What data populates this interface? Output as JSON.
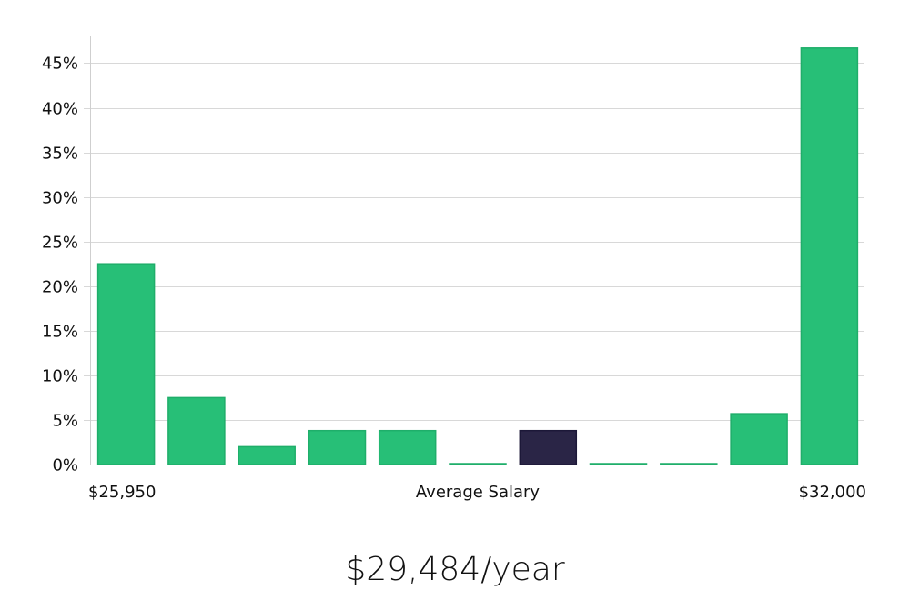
{
  "chart_data": {
    "type": "bar",
    "title": "",
    "xlabel": "Average Salary",
    "ylabel": "",
    "x_range_labels": {
      "min": "$25,950",
      "max": "$32,000"
    },
    "ylim": [
      0,
      48
    ],
    "yticks": [
      0,
      5,
      10,
      15,
      20,
      25,
      30,
      35,
      40,
      45
    ],
    "ytick_suffix": "%",
    "grid": true,
    "values": [
      22.5,
      7.5,
      2,
      3.8,
      3.8,
      0.1,
      3.8,
      0.1,
      0.1,
      5.7,
      46.7
    ],
    "highlight_index": 6,
    "colors": {
      "bar": "#27bf77",
      "bar_stroke": "#1fae6a",
      "highlight": "#2a2546",
      "highlight_stroke": "#1c1838",
      "grid": "#d8d8d8",
      "axis": "#cfcfcf"
    }
  },
  "summary": {
    "average_salary": "$29,484/year"
  }
}
